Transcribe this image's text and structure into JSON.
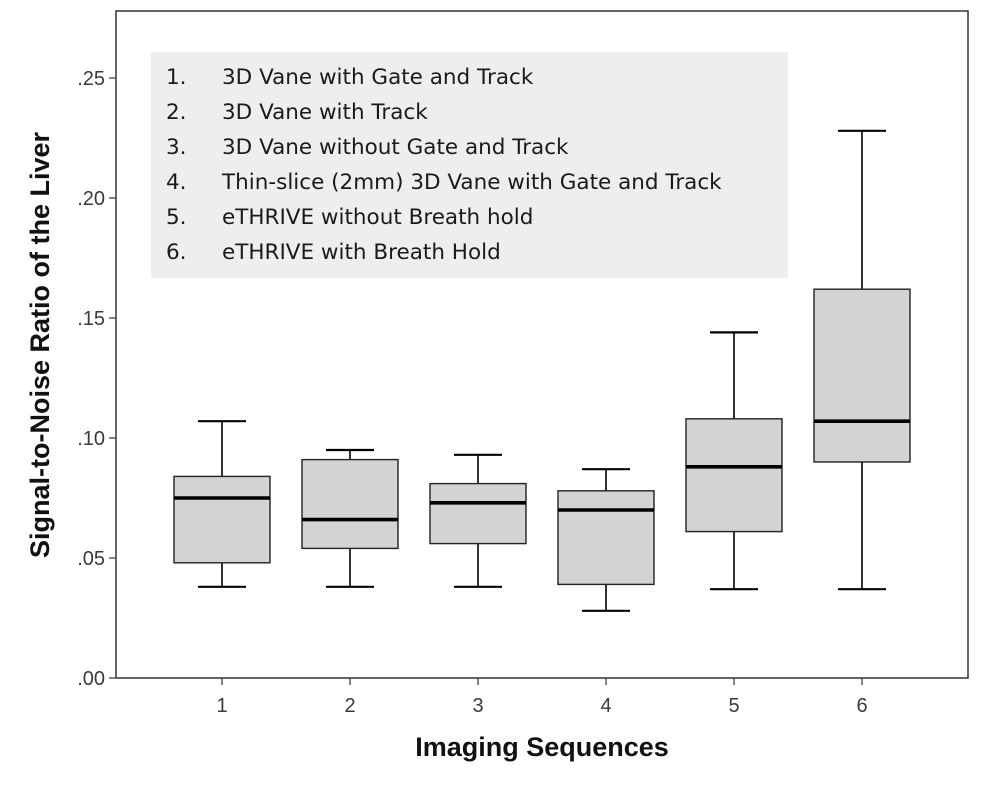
{
  "chart_data": {
    "type": "boxplot",
    "xlabel": "Imaging Sequences",
    "ylabel": "Signal-to-Noise Ratio of the Liver",
    "ylim": [
      0,
      0.28
    ],
    "yticks": [
      0.0,
      0.05,
      0.1,
      0.15,
      0.2,
      0.25
    ],
    "ytick_labels": [
      ".00",
      ".05",
      ".10",
      ".15",
      ".20",
      ".25"
    ],
    "categories": [
      "1",
      "2",
      "3",
      "4",
      "5",
      "6"
    ],
    "boxes": [
      {
        "category": "1",
        "whisker_low": 0.038,
        "q1": 0.048,
        "median": 0.075,
        "q3": 0.084,
        "whisker_high": 0.107
      },
      {
        "category": "2",
        "whisker_low": 0.038,
        "q1": 0.054,
        "median": 0.066,
        "q3": 0.091,
        "whisker_high": 0.095
      },
      {
        "category": "3",
        "whisker_low": 0.038,
        "q1": 0.056,
        "median": 0.073,
        "q3": 0.081,
        "whisker_high": 0.093
      },
      {
        "category": "4",
        "whisker_low": 0.028,
        "q1": 0.039,
        "median": 0.07,
        "q3": 0.078,
        "whisker_high": 0.087
      },
      {
        "category": "5",
        "whisker_low": 0.037,
        "q1": 0.061,
        "median": 0.088,
        "q3": 0.108,
        "whisker_high": 0.144
      },
      {
        "category": "6",
        "whisker_low": 0.037,
        "q1": 0.09,
        "median": 0.107,
        "q3": 0.162,
        "whisker_high": 0.228
      }
    ],
    "legend_position": "top-left",
    "legend_entries": [
      {
        "num": "1.",
        "text": "3D Vane with Gate and Track"
      },
      {
        "num": "2.",
        "text": "3D Vane with Track"
      },
      {
        "num": "3.",
        "text": "3D Vane without Gate and Track"
      },
      {
        "num": "4.",
        "text": "Thin-slice (2mm) 3D Vane with Gate and Track"
      },
      {
        "num": "5.",
        "text": "eTHRIVE without Breath hold"
      },
      {
        "num": "6.",
        "text": "eTHRIVE with Breath Hold"
      }
    ],
    "colors": {
      "box_fill": "#d3d3d3",
      "legend_bg": "#eeeeee",
      "line": "#000000"
    }
  }
}
